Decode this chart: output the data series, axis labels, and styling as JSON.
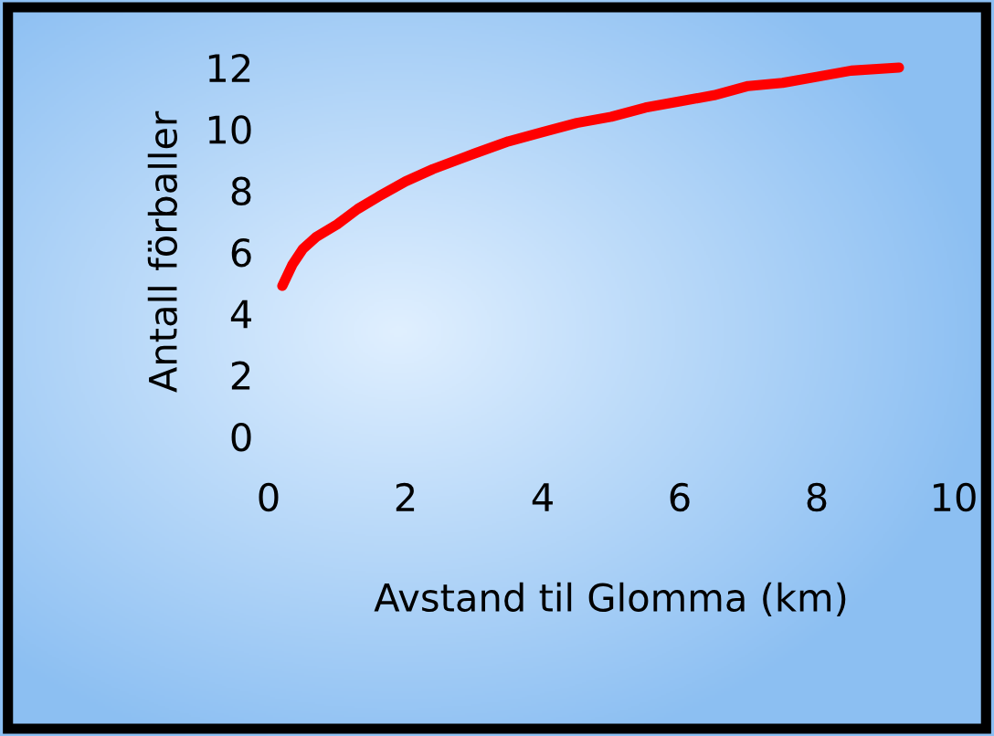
{
  "chart_data": {
    "type": "line",
    "xlabel": "Avstand til Glomma (km)",
    "ylabel": "Antall förballer",
    "x": [
      0.2,
      0.35,
      0.5,
      0.7,
      1.0,
      1.3,
      1.6,
      2.0,
      2.4,
      3.0,
      3.5,
      4.0,
      4.5,
      5.0,
      5.5,
      6.0,
      6.5,
      7.0,
      7.5,
      8.0,
      8.5,
      9.2
    ],
    "series": [
      {
        "color": "#ff0000",
        "values": [
          4.9,
          5.6,
          6.1,
          6.5,
          6.9,
          7.4,
          7.8,
          8.3,
          8.7,
          9.2,
          9.6,
          9.9,
          10.2,
          10.4,
          10.7,
          10.9,
          11.1,
          11.4,
          11.5,
          11.7,
          11.9,
          12.0
        ]
      }
    ],
    "xlim": [
      0,
      10
    ],
    "xticks": [
      0,
      2,
      4,
      6,
      8,
      10
    ],
    "ylim": [
      0,
      12
    ],
    "yticks": [
      0,
      2,
      4,
      6,
      8,
      10,
      12
    ],
    "grid": false,
    "legend": false,
    "marker": "none",
    "line_style": "solid"
  }
}
